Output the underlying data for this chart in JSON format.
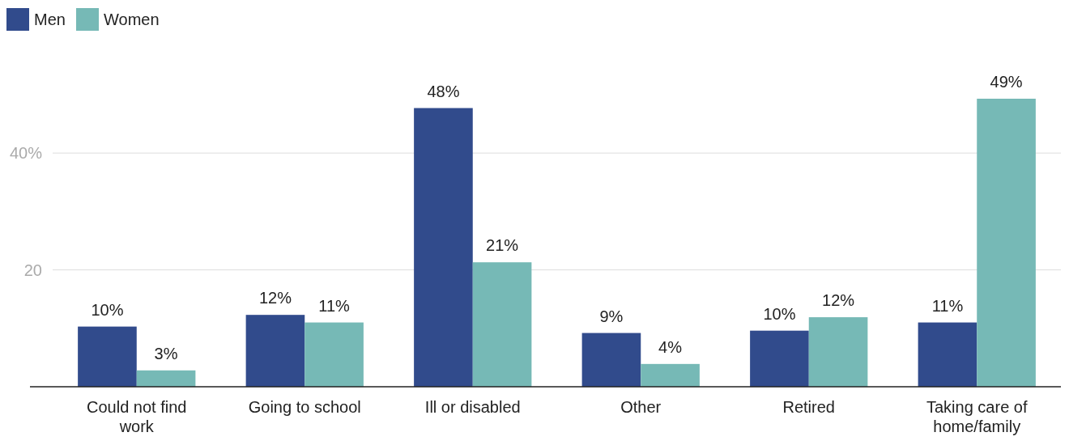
{
  "chart_data": {
    "type": "bar",
    "categories": [
      "Could not find work",
      "Going to school",
      "Ill or disabled",
      "Other",
      "Retired",
      "Taking care of home/family"
    ],
    "series": [
      {
        "name": "Men",
        "color": "#314b8c",
        "values": [
          10.3,
          12.3,
          47.7,
          9.2,
          9.6,
          11.0
        ],
        "value_labels": [
          "10%",
          "12%",
          "48%",
          "9%",
          "10%",
          "11%"
        ]
      },
      {
        "name": "Women",
        "color": "#76b9b6",
        "values": [
          2.8,
          11.0,
          21.3,
          3.9,
          11.9,
          49.3
        ],
        "value_labels": [
          "3%",
          "11%",
          "21%",
          "4%",
          "12%",
          "49%"
        ]
      }
    ],
    "ylim": [
      0,
      49.3
    ],
    "yticks": [
      {
        "value": 20,
        "label": "20"
      },
      {
        "value": 40,
        "label": "40%"
      }
    ],
    "grid": "y",
    "legend": "top left"
  }
}
